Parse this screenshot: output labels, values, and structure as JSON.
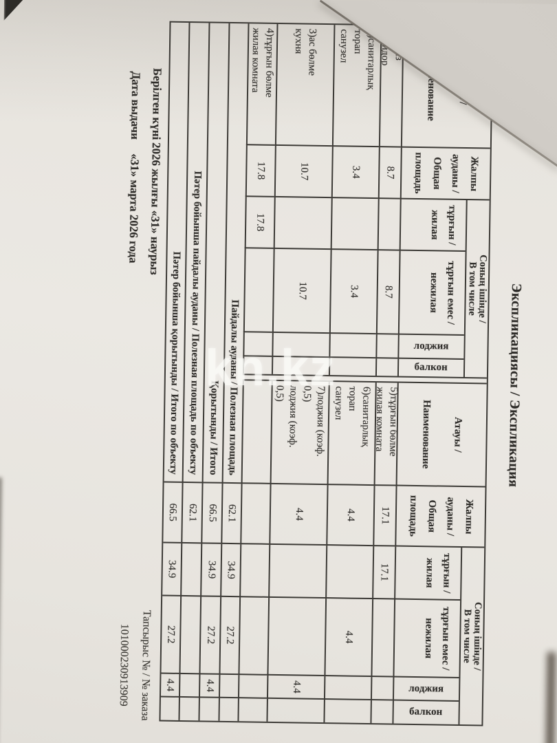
{
  "title": "Экспликациясы / Экспликация",
  "watermark": "kn.kz",
  "table": {
    "header": {
      "name": "Атауы /\nНаименование",
      "total_area": "Жалпы\nауданы /\nОбщая\nплощадь",
      "including": "Соның ішінде /\nВ том числе",
      "living": "тұрғын /\nжилая",
      "non_living": "тұрғын емес /\nнежилая",
      "loggia": "лоджия",
      "balcony": "балкон"
    },
    "left_rows": [
      {
        "name": "1)дәліз\nкоридор",
        "total": "8.7",
        "living": "",
        "non_living": "8.7",
        "loggia": "",
        "balcony": ""
      },
      {
        "name": "2)санитарлық\nторап\nсанузел",
        "total": "3.4",
        "living": "",
        "non_living": "3.4",
        "loggia": "",
        "balcony": ""
      },
      {
        "name": "3)ас бөлме\nкухня",
        "total": "10.7",
        "living": "",
        "non_living": "10.7",
        "loggia": "",
        "balcony": ""
      },
      {
        "name": "4)тұрғын бөлме\nжилая комната",
        "total": "17.8",
        "living": "17.8",
        "non_living": "",
        "loggia": "",
        "balcony": ""
      }
    ],
    "right_rows": [
      {
        "name": "5)тұрғын бөлме\nжилая комната",
        "total": "17.1",
        "living": "17.1",
        "non_living": "",
        "loggia": "",
        "balcony": ""
      },
      {
        "name": "6)санитарлық\nторап\nсанузел",
        "total": "4.4",
        "living": "",
        "non_living": "4.4",
        "loggia": "",
        "balcony": ""
      },
      {
        "name": "7)лоджия (коэф.\n0,5)\nлоджия (коэф.\n0,5)",
        "total": "4.4",
        "living": "",
        "non_living": "",
        "loggia": "4.4",
        "balcony": ""
      },
      {
        "name": "",
        "total": "",
        "living": "",
        "non_living": "",
        "loggia": "",
        "balcony": ""
      }
    ],
    "summary_rows": [
      {
        "label": "Пайдалы ауданы / Полезная площадь",
        "total": "62.1",
        "living": "34.9",
        "non_living": "27.2",
        "loggia": "",
        "balcony": ""
      },
      {
        "label": "Қорытынды / Итого",
        "total": "66.5",
        "living": "34.9",
        "non_living": "27.2",
        "loggia": "4.4",
        "balcony": ""
      },
      {
        "label": "Пәтер бойынша пайдалы ауданы / Полезная площадь по объекту",
        "total": "62.1",
        "living": "",
        "non_living": "",
        "loggia": "",
        "balcony": ""
      },
      {
        "label": "Пәтер бойынша қорытынды / Итого по объекту",
        "total": "66.5",
        "living": "34.9",
        "non_living": "27.2",
        "loggia": "4.4",
        "balcony": ""
      }
    ]
  },
  "footer": {
    "issued_label": "Берілген күні\nДата выдачи",
    "issued_date": "2026 жылғы «31» наурыз\n«31» марта 2026 года",
    "order_label": "Тапсырыс № / № заказа",
    "order_number": "101000230913909"
  }
}
